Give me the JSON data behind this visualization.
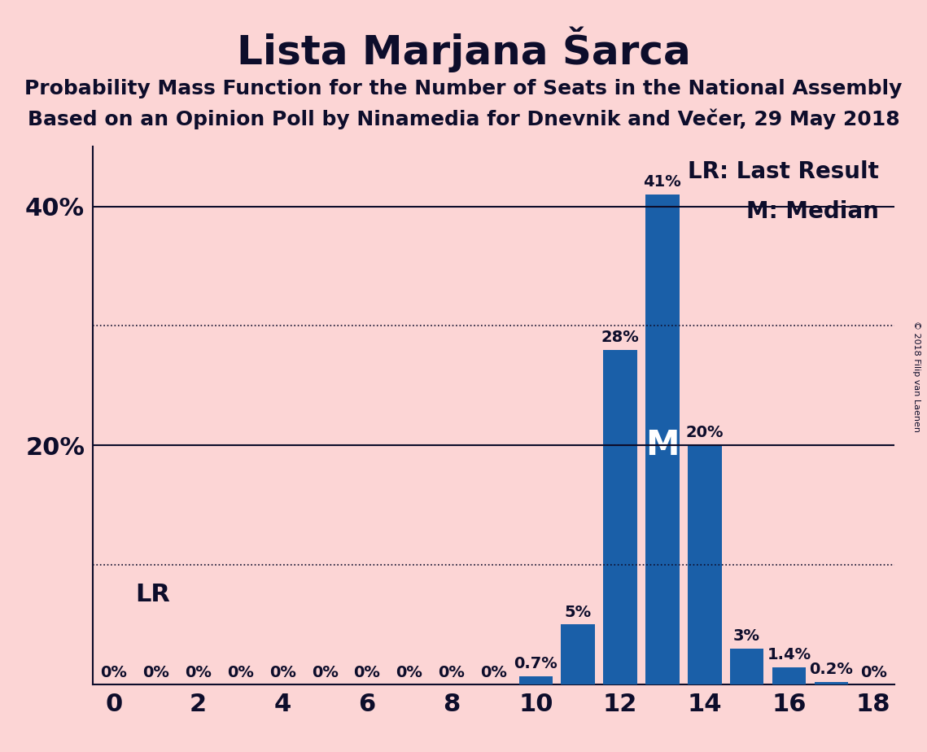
{
  "title": "Lista Marjana Šarca",
  "subtitle1": "Probability Mass Function for the Number of Seats in the National Assembly",
  "subtitle2": "Based on an Opinion Poll by Ninamedia for Dnevnik and Večer, 29 May 2018",
  "copyright": "© 2018 Filip van Laenen",
  "background_color": "#fcd5d5",
  "bar_color": "#1a5fa8",
  "text_color": "#0d0d2b",
  "seats": [
    0,
    1,
    2,
    3,
    4,
    5,
    6,
    7,
    8,
    9,
    10,
    11,
    12,
    13,
    14,
    15,
    16,
    17,
    18
  ],
  "probabilities": [
    0.0,
    0.0,
    0.0,
    0.0,
    0.0,
    0.0,
    0.0,
    0.0,
    0.0,
    0.0,
    0.7,
    5.0,
    28.0,
    41.0,
    20.0,
    3.0,
    1.4,
    0.2,
    0.0
  ],
  "labels": [
    "0%",
    "0%",
    "0%",
    "0%",
    "0%",
    "0%",
    "0%",
    "0%",
    "0%",
    "0%",
    "0.7%",
    "5%",
    "28%",
    "41%",
    "20%",
    "3%",
    "1.4%",
    "0.2%",
    "0%"
  ],
  "median_idx": 13,
  "xlim": [
    -0.5,
    18.5
  ],
  "ylim": [
    0,
    45
  ],
  "yticks": [
    0,
    10,
    20,
    30,
    40
  ],
  "solid_ylines": [
    20,
    40
  ],
  "dotted_ylines": [
    10,
    30
  ],
  "legend_lr": "LR: Last Result",
  "legend_m": "M: Median",
  "median_label": "M",
  "lr_label": "LR",
  "title_fontsize": 36,
  "subtitle_fontsize": 18,
  "label_fontsize": 14,
  "tick_fontsize": 22,
  "legend_fontsize": 20,
  "lr_fontsize": 22,
  "median_fontsize": 30
}
